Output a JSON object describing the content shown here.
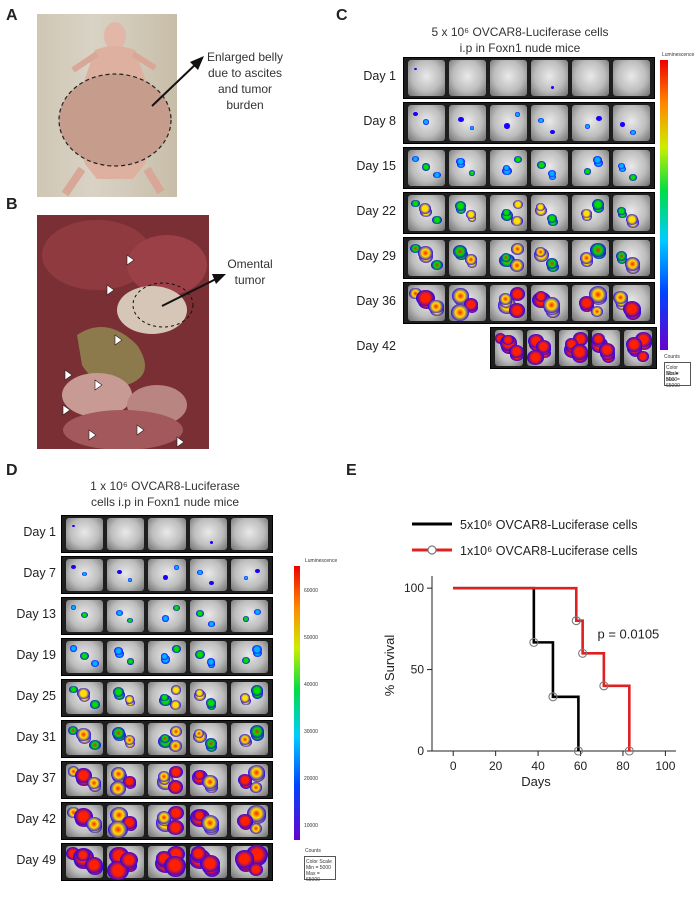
{
  "panels": {
    "A": {
      "letter": "A",
      "note_lines": [
        "Enlarged belly",
        "due to ascites",
        "and tumor",
        "burden"
      ]
    },
    "B": {
      "letter": "B",
      "note_lines": [
        "Omental",
        "tumor"
      ]
    },
    "C": {
      "letter": "C",
      "heading_line1": "5 x 10⁶ OVCAR8-Luciferase cells",
      "heading_line2": "i.p in Foxn1 nude mice",
      "days": [
        "Day 1",
        "Day 8",
        "Day 15",
        "Day 22",
        "Day 29",
        "Day 36",
        "Day 42"
      ],
      "scale": {
        "title": "Luminescence",
        "counts": "Counts",
        "line1": "Color Scale",
        "line2": "Min = 5000",
        "line3": "Max = 65000"
      }
    },
    "D": {
      "letter": "D",
      "heading_line1": "1 x 10⁶ OVCAR8-Luciferase",
      "heading_line2": "cells i.p in Foxn1 nude mice",
      "days": [
        "Day 1",
        "Day 7",
        "Day 13",
        "Day 19",
        "Day 25",
        "Day 31",
        "Day 37",
        "Day 42",
        "Day 49"
      ],
      "scale": {
        "title": "Luminescence",
        "counts": "Counts",
        "line1": "Color Scale",
        "line2": "Min = 5000",
        "line3": "Max = 65000"
      },
      "scale_ticks": [
        "60000",
        "50000",
        "40000",
        "30000",
        "20000",
        "10000"
      ]
    },
    "E": {
      "letter": "E"
    }
  },
  "colors": {
    "black_series": "#000000",
    "red_series": "#e02020",
    "marker": "#7a7a7a"
  },
  "chart_data": {
    "type": "line",
    "title": "",
    "xlabel": "Days",
    "ylabel": "% Survival",
    "xlim": [
      -10,
      105
    ],
    "ylim": [
      0,
      105
    ],
    "xticks": [
      0,
      20,
      40,
      60,
      80,
      100
    ],
    "yticks": [
      0,
      50,
      100
    ],
    "legend_position": "top",
    "annotation": "p = 0.0105",
    "series": [
      {
        "name": "5x10⁶ OVCAR8-Luciferase cells",
        "step": true,
        "x": [
          0,
          38,
          38,
          47,
          47,
          59,
          59
        ],
        "y": [
          100,
          100,
          66.7,
          66.7,
          33.3,
          33.3,
          0
        ],
        "markers": [
          [
            38,
            66.7
          ],
          [
            47,
            33.3
          ],
          [
            59,
            0
          ]
        ]
      },
      {
        "name": "1x10⁶ OVCAR8-Luciferase cells",
        "step": true,
        "x": [
          0,
          58,
          58,
          61,
          61,
          71,
          71,
          83,
          83
        ],
        "y": [
          100,
          100,
          80,
          80,
          60,
          60,
          40,
          40,
          0
        ],
        "markers": [
          [
            58,
            80
          ],
          [
            61,
            60
          ],
          [
            71,
            40
          ],
          [
            83,
            0
          ]
        ]
      }
    ]
  }
}
